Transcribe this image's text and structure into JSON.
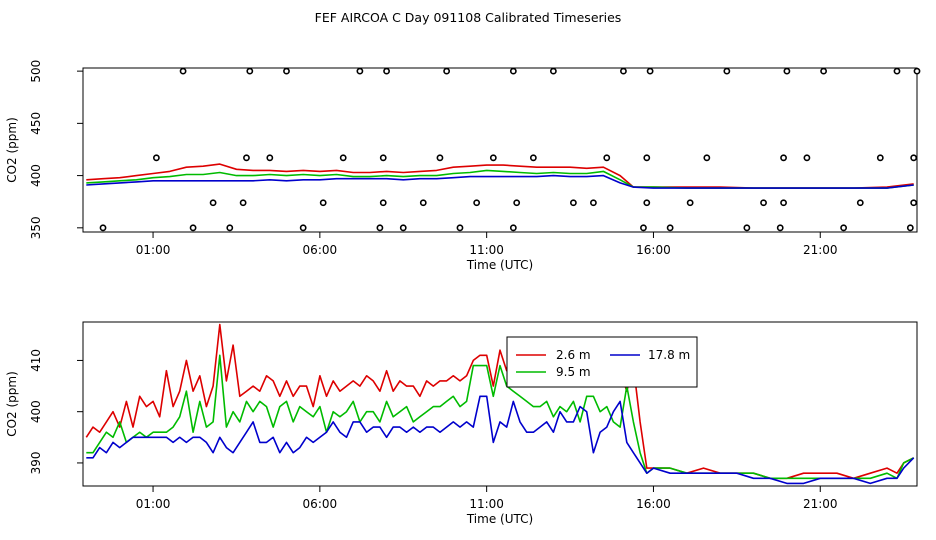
{
  "title": "FEF AIRCOA C  Day 091108  Calibrated Timeseries",
  "colors": {
    "s1": "#dd0000",
    "s2": "#00bb00",
    "s3": "#0000cc",
    "markers": "#000000",
    "axis": "#000000"
  },
  "chart_data": [
    {
      "type": "line",
      "title": "",
      "xlabel": "Time (UTC)",
      "ylabel": "CO2 (ppm)",
      "xlim": [
        -1.1,
        23.9
      ],
      "ylim": [
        346,
        503
      ],
      "xticks": [
        1,
        6,
        11,
        16,
        21
      ],
      "xtick_labels": [
        "01:00",
        "06:00",
        "11:00",
        "16:00",
        "21:00"
      ],
      "yticks": [
        350,
        400,
        450,
        500
      ],
      "ytick_labels": [
        "350",
        "400",
        "450",
        "500"
      ],
      "grid": false,
      "series": [
        {
          "color": "#dd0000",
          "x": [
            -1.0,
            -0.5,
            0.0,
            0.5,
            1.0,
            1.5,
            2.0,
            2.5,
            3.0,
            3.5,
            4.0,
            4.5,
            5.0,
            5.5,
            6.0,
            6.5,
            7.0,
            7.5,
            8.0,
            8.5,
            9.0,
            9.5,
            10.0,
            10.5,
            11.0,
            11.5,
            12.0,
            12.5,
            13.0,
            13.5,
            14.0,
            14.5,
            15.0,
            15.4,
            16.0,
            17.0,
            18.0,
            19.0,
            20.0,
            21.0,
            22.0,
            23.0,
            23.8
          ],
          "y": [
            396,
            397,
            398,
            400,
            402,
            404,
            408,
            409,
            411,
            406,
            405,
            405,
            404,
            405,
            404,
            405,
            403,
            403,
            404,
            403,
            404,
            405,
            408,
            409,
            410,
            410,
            409,
            408,
            408,
            408,
            407,
            408,
            400,
            389,
            389,
            389,
            389,
            388,
            388,
            388,
            388,
            389,
            392
          ]
        },
        {
          "color": "#00bb00",
          "x": [
            -1.0,
            -0.5,
            0.0,
            0.5,
            1.0,
            1.5,
            2.0,
            2.5,
            3.0,
            3.5,
            4.0,
            4.5,
            5.0,
            5.5,
            6.0,
            6.5,
            7.0,
            7.5,
            8.0,
            8.5,
            9.0,
            9.5,
            10.0,
            10.5,
            11.0,
            11.5,
            12.0,
            12.5,
            13.0,
            13.5,
            14.0,
            14.5,
            15.0,
            15.4,
            16.0,
            17.0,
            18.0,
            19.0,
            20.0,
            21.0,
            22.0,
            23.0,
            23.8
          ],
          "y": [
            393,
            394,
            395,
            396,
            398,
            399,
            401,
            401,
            403,
            400,
            400,
            401,
            400,
            401,
            400,
            401,
            399,
            399,
            400,
            399,
            400,
            400,
            402,
            403,
            405,
            404,
            403,
            402,
            403,
            402,
            402,
            404,
            396,
            389,
            389,
            388,
            388,
            388,
            388,
            388,
            388,
            388,
            391
          ]
        },
        {
          "color": "#0000cc",
          "x": [
            -1.0,
            -0.5,
            0.0,
            0.5,
            1.0,
            1.5,
            2.0,
            2.5,
            3.0,
            3.5,
            4.0,
            4.5,
            5.0,
            5.5,
            6.0,
            6.5,
            7.0,
            7.5,
            8.0,
            8.5,
            9.0,
            9.5,
            10.0,
            10.5,
            11.0,
            11.5,
            12.0,
            12.5,
            13.0,
            13.5,
            14.0,
            14.5,
            15.0,
            15.4,
            16.0,
            17.0,
            18.0,
            19.0,
            20.0,
            21.0,
            22.0,
            23.0,
            23.8
          ],
          "y": [
            391,
            392,
            393,
            394,
            395,
            395,
            395,
            395,
            395,
            395,
            395,
            396,
            395,
            396,
            396,
            397,
            397,
            397,
            397,
            396,
            397,
            397,
            398,
            399,
            399,
            399,
            399,
            399,
            400,
            399,
            399,
            400,
            393,
            389,
            388,
            388,
            388,
            388,
            388,
            388,
            388,
            388,
            391
          ]
        }
      ],
      "markers": {
        "x": [
          -0.5,
          1.1,
          1.9,
          2.2,
          2.8,
          3.3,
          3.7,
          3.8,
          3.9,
          4.5,
          5.0,
          5.5,
          6.1,
          6.7,
          7.2,
          7.8,
          7.9,
          7.9,
          8.0,
          8.5,
          9.1,
          9.6,
          9.8,
          10.2,
          10.7,
          11.2,
          11.8,
          11.8,
          11.9,
          12.4,
          13.0,
          13.6,
          14.2,
          14.6,
          15.1,
          15.7,
          15.8,
          15.8,
          15.9,
          16.5,
          17.1,
          17.6,
          18.2,
          18.8,
          19.3,
          19.8,
          19.9,
          19.9,
          20.0,
          20.6,
          21.1,
          21.7,
          22.2,
          22.8,
          23.3,
          23.7,
          23.8,
          23.8,
          23.9
        ],
        "y": [
          350,
          417,
          500,
          350,
          374,
          350,
          374,
          417,
          500,
          417,
          500,
          350,
          374,
          417,
          500,
          350,
          374,
          417,
          500,
          350,
          374,
          417,
          500,
          350,
          374,
          417,
          500,
          350,
          374,
          417,
          500,
          374,
          374,
          417,
          500,
          350,
          374,
          417,
          500,
          350,
          374,
          417,
          500,
          350,
          374,
          350,
          374,
          417,
          500,
          417,
          500,
          350,
          374,
          417,
          500,
          350,
          374,
          417,
          500
        ]
      }
    },
    {
      "type": "line",
      "title": "",
      "xlabel": "Time (UTC)",
      "ylabel": "CO2 (ppm)",
      "xlim": [
        -1.1,
        23.9
      ],
      "ylim": [
        385.5,
        417.5
      ],
      "xticks": [
        1,
        6,
        11,
        16,
        21
      ],
      "xtick_labels": [
        "01:00",
        "06:00",
        "11:00",
        "16:00",
        "21:00"
      ],
      "yticks": [
        390,
        400,
        410
      ],
      "ytick_labels": [
        "390",
        "400",
        "410"
      ],
      "grid": false,
      "legend": {
        "placement": "top-right",
        "entries": [
          {
            "label": "2.6 m",
            "color": "#dd0000"
          },
          {
            "label": "17.8 m",
            "color": "#0000cc"
          },
          {
            "label": "9.5 m",
            "color": "#00bb00"
          }
        ]
      },
      "series": [
        {
          "name": "2.6 m",
          "color": "#dd0000",
          "x": [
            -1.0,
            -0.8,
            -0.6,
            -0.4,
            -0.2,
            0.0,
            0.2,
            0.4,
            0.6,
            0.8,
            1.0,
            1.2,
            1.4,
            1.6,
            1.8,
            2.0,
            2.2,
            2.4,
            2.6,
            2.8,
            3.0,
            3.2,
            3.4,
            3.6,
            3.8,
            4.0,
            4.2,
            4.4,
            4.6,
            4.8,
            5.0,
            5.2,
            5.4,
            5.6,
            5.8,
            6.0,
            6.2,
            6.4,
            6.6,
            6.8,
            7.0,
            7.2,
            7.4,
            7.6,
            7.8,
            8.0,
            8.2,
            8.4,
            8.6,
            8.8,
            9.0,
            9.2,
            9.4,
            9.6,
            9.8,
            10.0,
            10.2,
            10.4,
            10.6,
            10.8,
            11.0,
            11.2,
            11.4,
            11.6,
            11.8,
            12.0,
            12.2,
            12.4,
            12.6,
            12.8,
            13.0,
            13.2,
            13.4,
            13.6,
            13.8,
            14.0,
            14.2,
            14.4,
            14.6,
            14.8,
            15.0,
            15.2,
            15.4,
            15.6,
            15.8,
            16.0,
            16.5,
            17.0,
            17.5,
            18.0,
            18.5,
            19.0,
            19.5,
            20.0,
            20.5,
            21.0,
            21.5,
            22.0,
            22.5,
            23.0,
            23.3,
            23.5,
            23.8
          ],
          "y": [
            395,
            397,
            396,
            398,
            400,
            397,
            402,
            397,
            403,
            401,
            402,
            399,
            408,
            401,
            404,
            410,
            404,
            407,
            401,
            405,
            417,
            406,
            413,
            403,
            404,
            405,
            404,
            407,
            406,
            403,
            406,
            403,
            405,
            405,
            401,
            407,
            403,
            406,
            404,
            405,
            406,
            405,
            407,
            406,
            404,
            408,
            404,
            406,
            405,
            405,
            403,
            406,
            405,
            406,
            406,
            407,
            406,
            407,
            410,
            411,
            411,
            405,
            412,
            408,
            414,
            405,
            410,
            411,
            408,
            410,
            407,
            409,
            409,
            407,
            410,
            410,
            409,
            408,
            406,
            407,
            408,
            404,
            409,
            398,
            389,
            389,
            389,
            388,
            389,
            388,
            388,
            388,
            387,
            387,
            388,
            388,
            388,
            387,
            388,
            389,
            388,
            390,
            391
          ]
        },
        {
          "name": "9.5 m",
          "color": "#00bb00",
          "x": [
            -1.0,
            -0.8,
            -0.6,
            -0.4,
            -0.2,
            0.0,
            0.2,
            0.4,
            0.6,
            0.8,
            1.0,
            1.2,
            1.4,
            1.6,
            1.8,
            2.0,
            2.2,
            2.4,
            2.6,
            2.8,
            3.0,
            3.2,
            3.4,
            3.6,
            3.8,
            4.0,
            4.2,
            4.4,
            4.6,
            4.8,
            5.0,
            5.2,
            5.4,
            5.6,
            5.8,
            6.0,
            6.2,
            6.4,
            6.6,
            6.8,
            7.0,
            7.2,
            7.4,
            7.6,
            7.8,
            8.0,
            8.2,
            8.4,
            8.6,
            8.8,
            9.0,
            9.2,
            9.4,
            9.6,
            9.8,
            10.0,
            10.2,
            10.4,
            10.6,
            10.8,
            11.0,
            11.2,
            11.4,
            11.6,
            11.8,
            12.0,
            12.2,
            12.4,
            12.6,
            12.8,
            13.0,
            13.2,
            13.4,
            13.6,
            13.8,
            14.0,
            14.2,
            14.4,
            14.6,
            14.8,
            15.0,
            15.2,
            15.4,
            15.6,
            15.8,
            16.0,
            16.5,
            17.0,
            17.5,
            18.0,
            18.5,
            19.0,
            19.5,
            20.0,
            20.5,
            21.0,
            21.5,
            22.0,
            22.5,
            23.0,
            23.3,
            23.5,
            23.8
          ],
          "y": [
            392,
            392,
            394,
            396,
            395,
            398,
            394,
            395,
            396,
            395,
            396,
            396,
            396,
            397,
            399,
            404,
            396,
            402,
            397,
            398,
            411,
            397,
            400,
            398,
            402,
            400,
            402,
            401,
            397,
            401,
            402,
            398,
            401,
            400,
            399,
            401,
            396,
            400,
            399,
            400,
            402,
            398,
            400,
            400,
            398,
            402,
            399,
            400,
            401,
            398,
            399,
            400,
            401,
            401,
            402,
            403,
            401,
            402,
            409,
            409,
            409,
            403,
            409,
            405,
            404,
            403,
            402,
            401,
            401,
            402,
            399,
            401,
            400,
            402,
            398,
            403,
            403,
            400,
            401,
            398,
            397,
            405,
            398,
            392,
            388,
            389,
            389,
            388,
            388,
            388,
            388,
            388,
            387,
            387,
            387,
            387,
            387,
            387,
            387,
            388,
            387,
            390,
            391
          ]
        },
        {
          "name": "17.8 m",
          "color": "#0000cc",
          "x": [
            -1.0,
            -0.8,
            -0.6,
            -0.4,
            -0.2,
            0.0,
            0.2,
            0.4,
            0.6,
            0.8,
            1.0,
            1.2,
            1.4,
            1.6,
            1.8,
            2.0,
            2.2,
            2.4,
            2.6,
            2.8,
            3.0,
            3.2,
            3.4,
            3.6,
            3.8,
            4.0,
            4.2,
            4.4,
            4.6,
            4.8,
            5.0,
            5.2,
            5.4,
            5.6,
            5.8,
            6.0,
            6.2,
            6.4,
            6.6,
            6.8,
            7.0,
            7.2,
            7.4,
            7.6,
            7.8,
            8.0,
            8.2,
            8.4,
            8.6,
            8.8,
            9.0,
            9.2,
            9.4,
            9.6,
            9.8,
            10.0,
            10.2,
            10.4,
            10.6,
            10.8,
            11.0,
            11.2,
            11.4,
            11.6,
            11.8,
            12.0,
            12.2,
            12.4,
            12.6,
            12.8,
            13.0,
            13.2,
            13.4,
            13.6,
            13.8,
            14.0,
            14.2,
            14.4,
            14.6,
            14.8,
            15.0,
            15.2,
            15.4,
            15.6,
            15.8,
            16.0,
            16.5,
            17.0,
            17.5,
            18.0,
            18.5,
            19.0,
            19.5,
            20.0,
            20.5,
            21.0,
            21.5,
            22.0,
            22.5,
            23.0,
            23.3,
            23.5,
            23.8
          ],
          "y": [
            391,
            391,
            393,
            392,
            394,
            393,
            394,
            395,
            395,
            395,
            395,
            395,
            395,
            394,
            395,
            394,
            395,
            395,
            394,
            392,
            395,
            393,
            392,
            394,
            396,
            398,
            394,
            394,
            395,
            392,
            394,
            392,
            393,
            395,
            394,
            395,
            396,
            398,
            396,
            395,
            398,
            398,
            396,
            397,
            397,
            395,
            397,
            397,
            396,
            397,
            396,
            397,
            397,
            396,
            397,
            398,
            397,
            398,
            397,
            403,
            403,
            394,
            398,
            397,
            402,
            398,
            396,
            396,
            397,
            398,
            396,
            400,
            398,
            398,
            401,
            400,
            392,
            396,
            397,
            400,
            402,
            394,
            392,
            390,
            388,
            389,
            388,
            388,
            388,
            388,
            388,
            387,
            387,
            386,
            386,
            387,
            387,
            387,
            386,
            387,
            387,
            389,
            391
          ]
        }
      ]
    }
  ]
}
